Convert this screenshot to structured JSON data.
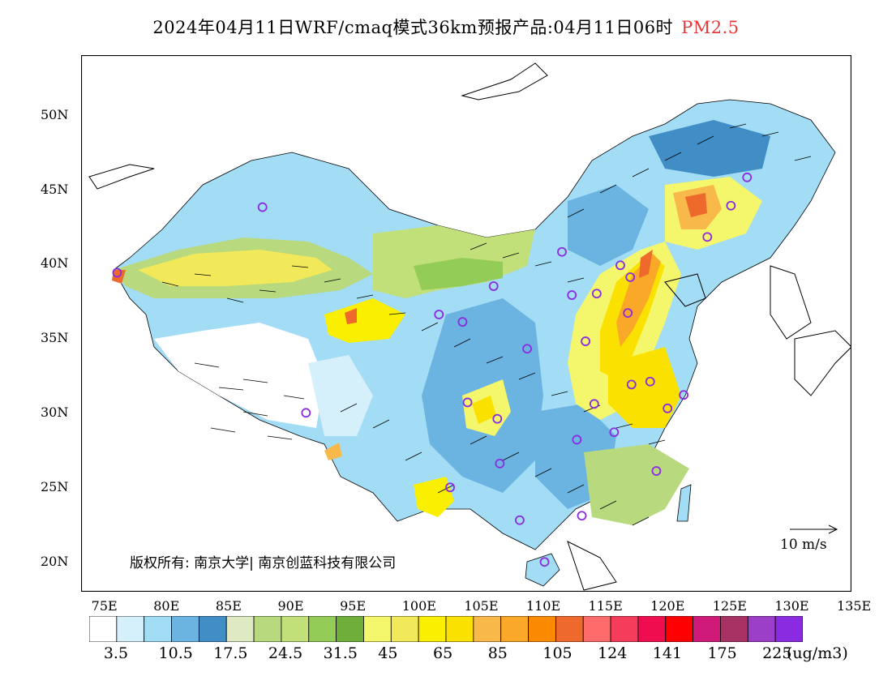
{
  "header": {
    "title": "2024年04月11日WRF/cmaq模式36km预报产品:04月11日06时",
    "species": "PM2.5",
    "species_color": "#e8383c"
  },
  "axes": {
    "lat_labels": [
      "50N",
      "45N",
      "40N",
      "35N",
      "30N",
      "25N",
      "20N"
    ],
    "lat_values": [
      50,
      45,
      40,
      35,
      30,
      25,
      20
    ],
    "lon_labels": [
      "75E",
      "80E",
      "85E",
      "90E",
      "95E",
      "100E",
      "105E",
      "110E",
      "115E",
      "120E",
      "125E",
      "130E",
      "135E"
    ],
    "lon_values": [
      75,
      80,
      85,
      90,
      95,
      100,
      105,
      110,
      115,
      120,
      125,
      130,
      135
    ],
    "lon_range": [
      73,
      135
    ],
    "lat_range": [
      18,
      54
    ]
  },
  "colorbar": {
    "colors": [
      "#ffffff",
      "#d6f0fb",
      "#a3dcf5",
      "#6bb3e0",
      "#418dc6",
      "#dfeac3",
      "#b8d97d",
      "#c2e07a",
      "#93cc56",
      "#6fae3a",
      "#f4f66c",
      "#f2e95a",
      "#fbef00",
      "#fbe100",
      "#f8b94a",
      "#f9a827",
      "#fa8a00",
      "#ee6a2c",
      "#ff6b6b",
      "#f53c5a",
      "#ef0c4f",
      "#ff0000",
      "#cf1a7a",
      "#a83264",
      "#9b3ec8",
      "#8a2be2"
    ],
    "labels": [
      "3.5",
      "10.5",
      "17.5",
      "24.5",
      "31.5",
      "45",
      "65",
      "85",
      "105",
      "124",
      "141",
      "175",
      "225"
    ],
    "units": "(ug/m3)"
  },
  "annotations": {
    "copyright": "版权所有: 南京大学| 南京创蓝科技有限公司",
    "wind_ref": "10 m/s"
  },
  "stations": [
    {
      "lon": 75.9,
      "lat": 39.4
    },
    {
      "lon": 87.6,
      "lat": 43.8
    },
    {
      "lon": 91.1,
      "lat": 30.0
    },
    {
      "lon": 101.8,
      "lat": 36.6
    },
    {
      "lon": 103.7,
      "lat": 36.1
    },
    {
      "lon": 106.2,
      "lat": 38.5
    },
    {
      "lon": 111.7,
      "lat": 40.8
    },
    {
      "lon": 112.5,
      "lat": 37.9
    },
    {
      "lon": 114.5,
      "lat": 38.0
    },
    {
      "lon": 116.4,
      "lat": 39.9
    },
    {
      "lon": 117.2,
      "lat": 39.1
    },
    {
      "lon": 117.0,
      "lat": 36.7
    },
    {
      "lon": 113.6,
      "lat": 34.8
    },
    {
      "lon": 108.9,
      "lat": 34.3
    },
    {
      "lon": 104.1,
      "lat": 30.7
    },
    {
      "lon": 106.5,
      "lat": 29.6
    },
    {
      "lon": 106.7,
      "lat": 26.6
    },
    {
      "lon": 102.7,
      "lat": 25.0
    },
    {
      "lon": 108.3,
      "lat": 22.8
    },
    {
      "lon": 113.3,
      "lat": 23.1
    },
    {
      "lon": 110.3,
      "lat": 20.0
    },
    {
      "lon": 112.9,
      "lat": 28.2
    },
    {
      "lon": 114.3,
      "lat": 30.6
    },
    {
      "lon": 115.9,
      "lat": 28.7
    },
    {
      "lon": 117.3,
      "lat": 31.9
    },
    {
      "lon": 118.8,
      "lat": 32.1
    },
    {
      "lon": 121.5,
      "lat": 31.2
    },
    {
      "lon": 120.2,
      "lat": 30.3
    },
    {
      "lon": 119.3,
      "lat": 26.1
    },
    {
      "lon": 123.4,
      "lat": 41.8
    },
    {
      "lon": 125.3,
      "lat": 43.9
    },
    {
      "lon": 126.6,
      "lat": 45.8
    }
  ]
}
